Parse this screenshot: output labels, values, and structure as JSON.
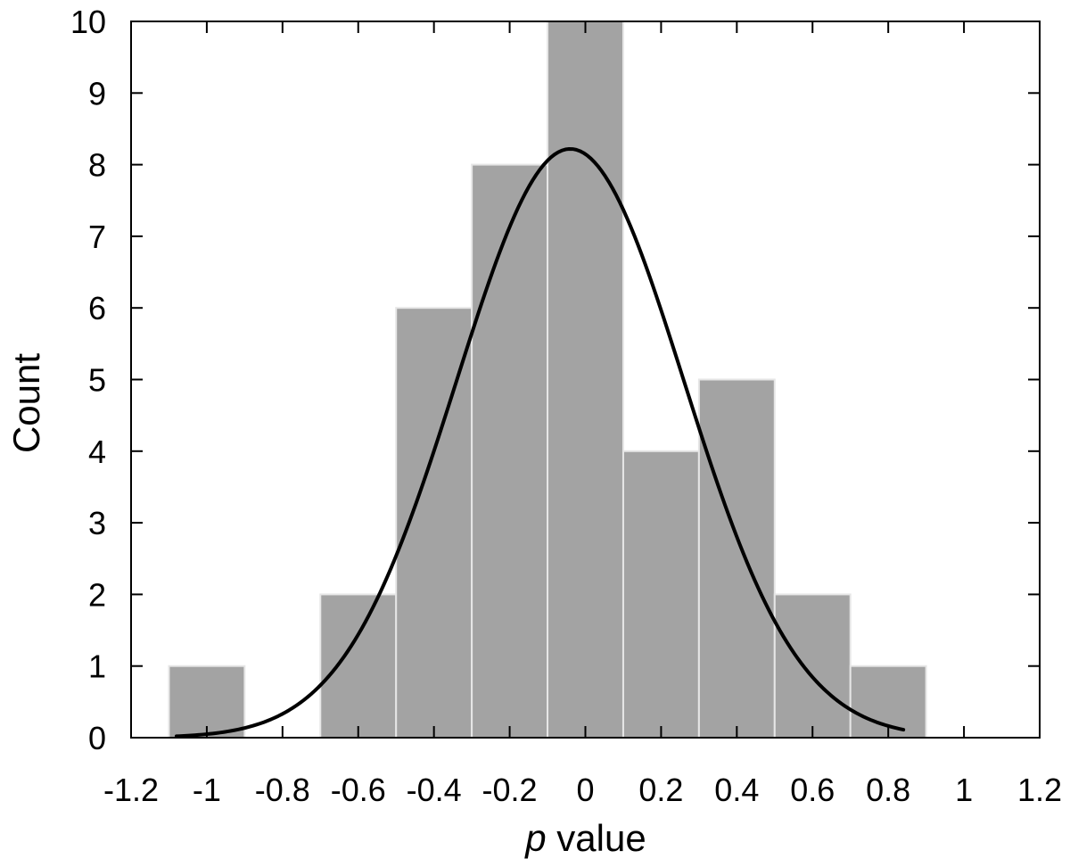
{
  "chart_data": {
    "type": "bar",
    "subtype": "histogram-with-fitted-curve",
    "title": "",
    "xlabel": {
      "italic_part": "p",
      "rest": " value"
    },
    "ylabel": "Count",
    "xlim": [
      -1.2,
      1.2
    ],
    "ylim": [
      0,
      10
    ],
    "x_ticks": [
      "-1.2",
      "-1",
      "-0.8",
      "-0.6",
      "-0.4",
      "-0.2",
      "0",
      "0.2",
      "0.4",
      "0.6",
      "0.8",
      "1",
      "1.2"
    ],
    "y_ticks": [
      "0",
      "1",
      "2",
      "3",
      "4",
      "5",
      "6",
      "7",
      "8",
      "9",
      "10"
    ],
    "bins": [
      {
        "start": -1.1,
        "end": -0.9,
        "count": 1
      },
      {
        "start": -0.9,
        "end": -0.7,
        "count": 0
      },
      {
        "start": -0.7,
        "end": -0.5,
        "count": 2
      },
      {
        "start": -0.5,
        "end": -0.3,
        "count": 6
      },
      {
        "start": -0.3,
        "end": -0.1,
        "count": 8
      },
      {
        "start": -0.1,
        "end": 0.1,
        "count": 10
      },
      {
        "start": 0.1,
        "end": 0.3,
        "count": 4
      },
      {
        "start": 0.3,
        "end": 0.5,
        "count": 5
      },
      {
        "start": 0.5,
        "end": 0.7,
        "count": 2
      },
      {
        "start": 0.7,
        "end": 0.9,
        "count": 1
      }
    ],
    "fit_curve": {
      "type": "normal",
      "peak": 8.22,
      "mean": -0.04,
      "sd": 0.3,
      "x_range": [
        -1.08,
        0.84
      ]
    },
    "grid": false,
    "legend": "none",
    "colors": {
      "bar_fill": "#a3a3a3",
      "bar_edge": "#e6e6e6",
      "curve": "#000000",
      "axis": "#000000"
    }
  }
}
